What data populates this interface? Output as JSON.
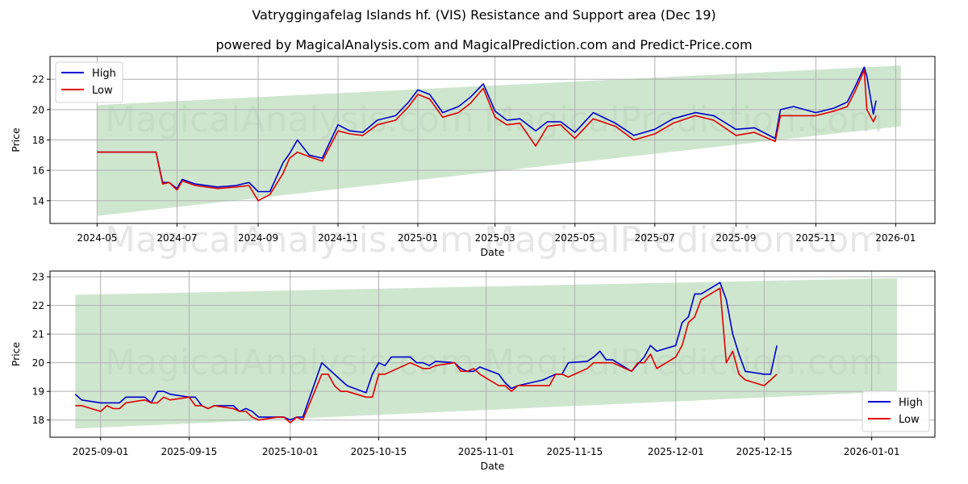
{
  "header": {
    "title": "Vatryggingafelag Islands hf. (VIS) Resistance and Support area (Dec 19)",
    "subtitle": "powered by MagicalAnalysis.com and MagicalPrediction.com and Predict-Price.com"
  },
  "watermarks": [
    "MagicalAnalysis.com",
    "MagicalPrediction.com"
  ],
  "colors": {
    "high": "#0000cc",
    "low": "#e00000",
    "band": "#b3d9b3",
    "grid": "#b0b0b0"
  },
  "chart_data": [
    {
      "type": "line",
      "title": "Vatryggingafelag Islands hf. (VIS) Resistance and Support area (Dec 19)",
      "xlabel": "Date",
      "ylabel": "Price",
      "ylim": [
        12.5,
        23.5
      ],
      "yticks": [
        14,
        16,
        18,
        20,
        22
      ],
      "xticks": [
        "2024-05",
        "2024-07",
        "2024-09",
        "2024-11",
        "2025-01",
        "2025-03",
        "2025-05",
        "2025-07",
        "2025-09",
        "2025-11",
        "2026-01"
      ],
      "grid": true,
      "legend": {
        "position": "upper left",
        "entries": [
          "High",
          "Low"
        ]
      },
      "band": {
        "label": "Resistance/Support area",
        "x_start": "2024-05-01",
        "x_end": "2026-01-05",
        "upper": [
          20.3,
          22.9
        ],
        "lower": [
          13.0,
          18.9
        ]
      },
      "x": [
        "2024-05-01",
        "2024-06-15",
        "2024-06-20",
        "2024-06-25",
        "2024-07-01",
        "2024-07-05",
        "2024-07-15",
        "2024-08-01",
        "2024-08-15",
        "2024-08-25",
        "2024-09-01",
        "2024-09-10",
        "2024-09-20",
        "2024-09-25",
        "2024-10-01",
        "2024-10-10",
        "2024-10-20",
        "2024-11-01",
        "2024-11-10",
        "2024-11-20",
        "2024-12-01",
        "2024-12-15",
        "2024-12-25",
        "2025-01-01",
        "2025-01-10",
        "2025-01-20",
        "2025-02-01",
        "2025-02-10",
        "2025-02-20",
        "2025-03-01",
        "2025-03-10",
        "2025-03-20",
        "2025-04-01",
        "2025-04-10",
        "2025-04-20",
        "2025-05-01",
        "2025-05-15",
        "2025-06-01",
        "2025-06-15",
        "2025-07-01",
        "2025-07-15",
        "2025-08-01",
        "2025-08-15",
        "2025-09-01",
        "2025-09-15",
        "2025-10-01",
        "2025-10-05",
        "2025-10-15",
        "2025-11-01",
        "2025-11-15",
        "2025-11-25",
        "2025-12-01",
        "2025-12-08",
        "2025-12-10",
        "2025-12-15",
        "2025-12-17"
      ],
      "series": [
        {
          "name": "High",
          "values": [
            17.2,
            17.2,
            15.2,
            15.2,
            14.8,
            15.4,
            15.1,
            14.9,
            15.0,
            15.2,
            14.6,
            14.6,
            16.5,
            17.1,
            18.0,
            17.0,
            16.8,
            19.0,
            18.6,
            18.5,
            19.3,
            19.6,
            20.5,
            21.3,
            21.0,
            19.8,
            20.2,
            20.8,
            21.7,
            19.9,
            19.3,
            19.4,
            18.6,
            19.2,
            19.2,
            18.5,
            19.8,
            19.1,
            18.3,
            18.7,
            19.4,
            19.8,
            19.6,
            18.7,
            18.8,
            18.1,
            20.0,
            20.2,
            19.8,
            20.1,
            20.5,
            21.5,
            22.8,
            22.2,
            19.7,
            20.6
          ]
        },
        {
          "name": "Low",
          "values": [
            17.2,
            17.2,
            15.1,
            15.2,
            14.7,
            15.3,
            15.0,
            14.8,
            14.9,
            15.0,
            14.0,
            14.4,
            15.8,
            16.8,
            17.2,
            16.9,
            16.6,
            18.6,
            18.4,
            18.3,
            19.0,
            19.3,
            20.2,
            21.0,
            20.7,
            19.5,
            19.8,
            20.4,
            21.4,
            19.5,
            19.0,
            19.1,
            17.6,
            18.9,
            19.0,
            18.1,
            19.4,
            18.9,
            18.0,
            18.4,
            19.1,
            19.6,
            19.3,
            18.3,
            18.5,
            17.9,
            19.6,
            19.6,
            19.6,
            19.9,
            20.2,
            21.2,
            22.6,
            20.0,
            19.2,
            19.6
          ]
        }
      ]
    },
    {
      "type": "line",
      "xlabel": "Date",
      "ylabel": "Price",
      "ylim": [
        17.4,
        23.2
      ],
      "yticks": [
        18,
        19,
        20,
        21,
        22,
        23
      ],
      "xticks": [
        "2025-09-01",
        "2025-09-15",
        "2025-10-01",
        "2025-10-15",
        "2025-11-01",
        "2025-11-15",
        "2025-12-01",
        "2025-12-15",
        "2026-01-01"
      ],
      "grid": true,
      "legend": {
        "position": "lower right",
        "entries": [
          "High",
          "Low"
        ]
      },
      "band": {
        "label": "Resistance/Support area",
        "x_start": "2025-08-28",
        "x_end": "2026-01-05",
        "upper": [
          22.37,
          22.95
        ],
        "lower": [
          17.7,
          19.0
        ]
      },
      "x": [
        "2025-08-28",
        "2025-08-29",
        "2025-09-01",
        "2025-09-02",
        "2025-09-03",
        "2025-09-04",
        "2025-09-05",
        "2025-09-08",
        "2025-09-09",
        "2025-09-10",
        "2025-09-11",
        "2025-09-12",
        "2025-09-15",
        "2025-09-16",
        "2025-09-17",
        "2025-09-18",
        "2025-09-19",
        "2025-09-22",
        "2025-09-23",
        "2025-09-24",
        "2025-09-25",
        "2025-09-26",
        "2025-09-29",
        "2025-09-30",
        "2025-10-01",
        "2025-10-02",
        "2025-10-03",
        "2025-10-06",
        "2025-10-07",
        "2025-10-08",
        "2025-10-09",
        "2025-10-10",
        "2025-10-13",
        "2025-10-14",
        "2025-10-15",
        "2025-10-16",
        "2025-10-17",
        "2025-10-20",
        "2025-10-21",
        "2025-10-22",
        "2025-10-23",
        "2025-10-24",
        "2025-10-27",
        "2025-10-28",
        "2025-10-29",
        "2025-10-30",
        "2025-10-31",
        "2025-11-03",
        "2025-11-04",
        "2025-11-05",
        "2025-11-06",
        "2025-11-10",
        "2025-11-11",
        "2025-11-12",
        "2025-11-13",
        "2025-11-14",
        "2025-11-17",
        "2025-11-18",
        "2025-11-19",
        "2025-11-20",
        "2025-11-21",
        "2025-11-24",
        "2025-11-25",
        "2025-11-26",
        "2025-11-27",
        "2025-11-28",
        "2025-12-01",
        "2025-12-02",
        "2025-12-03",
        "2025-12-04",
        "2025-12-05",
        "2025-12-08",
        "2025-12-09",
        "2025-12-10",
        "2025-12-11",
        "2025-12-12",
        "2025-12-15",
        "2025-12-16",
        "2025-12-17"
      ],
      "series": [
        {
          "name": "High",
          "values": [
            18.9,
            18.7,
            18.6,
            18.6,
            18.6,
            18.6,
            18.8,
            18.8,
            18.6,
            19.0,
            19.0,
            18.9,
            18.8,
            18.8,
            18.5,
            18.4,
            18.5,
            18.5,
            18.3,
            18.4,
            18.3,
            18.1,
            18.1,
            18.1,
            18.0,
            18.1,
            18.1,
            20.0,
            19.8,
            19.6,
            19.4,
            19.2,
            18.95,
            19.6,
            20.0,
            19.9,
            20.2,
            20.2,
            20.0,
            20.0,
            19.9,
            20.05,
            20.0,
            19.8,
            19.7,
            19.7,
            19.85,
            19.6,
            19.3,
            19.1,
            19.2,
            19.4,
            19.5,
            19.6,
            19.6,
            20.0,
            20.05,
            20.2,
            20.4,
            20.1,
            20.1,
            19.7,
            19.95,
            20.2,
            20.6,
            20.4,
            20.6,
            21.4,
            21.6,
            22.4,
            22.4,
            22.8,
            22.2,
            21.0,
            20.3,
            19.7,
            19.6,
            19.6,
            20.6
          ]
        },
        {
          "name": "Low",
          "values": [
            18.5,
            18.5,
            18.3,
            18.5,
            18.4,
            18.4,
            18.6,
            18.7,
            18.6,
            18.6,
            18.8,
            18.7,
            18.8,
            18.5,
            18.5,
            18.4,
            18.5,
            18.4,
            18.3,
            18.3,
            18.1,
            18.0,
            18.1,
            18.1,
            17.9,
            18.1,
            18.0,
            19.6,
            19.6,
            19.2,
            19.0,
            19.0,
            18.8,
            18.8,
            19.6,
            19.6,
            19.7,
            20.0,
            19.9,
            19.8,
            19.8,
            19.9,
            20.0,
            19.7,
            19.7,
            19.8,
            19.6,
            19.2,
            19.2,
            19.0,
            19.2,
            19.2,
            19.2,
            19.6,
            19.6,
            19.5,
            19.8,
            20.0,
            20.0,
            20.0,
            20.0,
            19.7,
            20.0,
            20.0,
            20.3,
            19.8,
            20.2,
            20.6,
            21.4,
            21.6,
            22.2,
            22.6,
            20.0,
            20.4,
            19.6,
            19.4,
            19.2,
            19.4,
            19.6
          ]
        }
      ]
    }
  ]
}
